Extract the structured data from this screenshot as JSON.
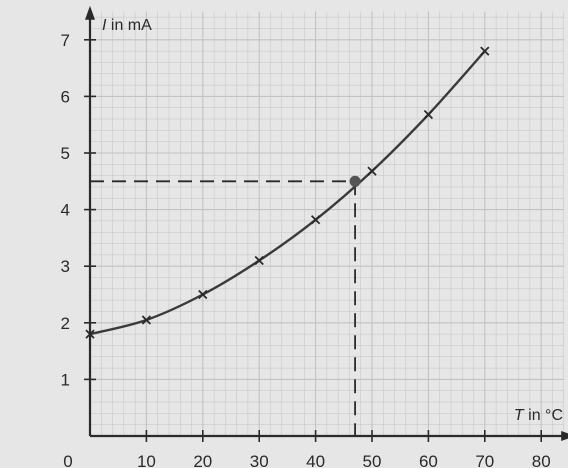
{
  "chart_data": {
    "type": "line",
    "x_axis": {
      "label_symbol": "T",
      "label_unit": " in °C",
      "range": [
        0,
        80
      ],
      "ticks": [
        0,
        10,
        20,
        30,
        40,
        50,
        60,
        70,
        80
      ],
      "tick_labels": [
        "0",
        "10",
        "20",
        "30",
        "40",
        "50",
        "60",
        "70",
        "80"
      ]
    },
    "y_axis": {
      "label_symbol": "I",
      "label_unit": " in mA",
      "range": [
        0,
        7
      ],
      "ticks": [
        1,
        2,
        3,
        4,
        5,
        6,
        7
      ],
      "tick_labels": [
        "1",
        "2",
        "3",
        "4",
        "5",
        "6",
        "7"
      ]
    },
    "series": [
      {
        "marker": "x",
        "x": [
          0,
          10,
          20,
          30,
          40,
          50,
          60,
          70
        ],
        "y": [
          1.8,
          2.05,
          2.5,
          3.1,
          3.82,
          4.68,
          5.68,
          6.8
        ]
      }
    ],
    "highlight_point": {
      "x": 47,
      "y": 4.5
    },
    "grid": true,
    "colors": {
      "background": "#e6e6e6",
      "grid": "#c2c2c2",
      "axis": "#2a2a2a",
      "curve": "#3a3a3a"
    }
  }
}
